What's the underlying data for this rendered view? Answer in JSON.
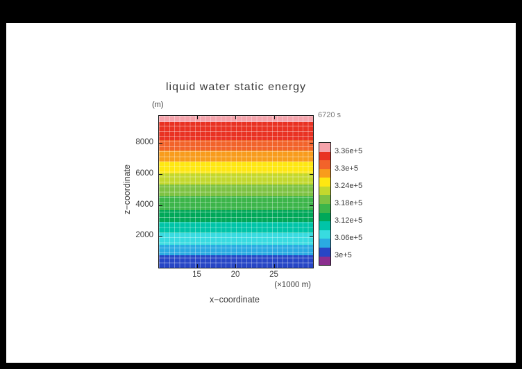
{
  "title": "liquid water static energy",
  "time_label": "6720 s",
  "axes": {
    "y_unit_label": "(m)",
    "y_axis_label": "z−coordinate",
    "x_axis_label": "x−coordinate",
    "x_unit_label": "(×1000 m)",
    "y_tick_labels": [
      "2000",
      "4000",
      "6000",
      "8000"
    ],
    "x_tick_labels": [
      "15",
      "20",
      "25"
    ]
  },
  "colorbar": {
    "labels_top_to_bottom": [
      "3.36e+5",
      "3.3e+5",
      "3.24e+5",
      "3.18e+5",
      "3.12e+5",
      "3.06e+5",
      "3e+5"
    ],
    "segments_top_to_bottom": [
      "#f5a3ab",
      "#e93223",
      "#f2632a",
      "#f89c1c",
      "#fee711",
      "#c3d82d",
      "#7dc242",
      "#3cb54a",
      "#00a859",
      "#00c4a7",
      "#38dbe0",
      "#2aabe2",
      "#2746c6",
      "#8b2f8f"
    ]
  },
  "chart_data": {
    "type": "heatmap",
    "title": "liquid water static energy",
    "time_annotation": "6720 s",
    "xlabel": "x−coordinate (×1000 m)",
    "ylabel": "z−coordinate (m)",
    "xlim": [
      10,
      30
    ],
    "ylim": [
      0,
      9800
    ],
    "x_ticks": [
      15,
      20,
      25
    ],
    "y_ticks": [
      2000,
      4000,
      6000,
      8000
    ],
    "value_units": "liquid water static energy",
    "value_range": [
      297000,
      339000
    ],
    "contour_interval": 3000,
    "colorbar_tick_values": [
      336000,
      330000,
      324000,
      318000,
      312000,
      306000,
      300000
    ],
    "field_description": "Horizontally stratified field; value increases nearly linearly with height z from ~3.03e5 at z=0 to ~3.39e5 at z=9800 m, producing horizontal color bands (red/pink aloft, blue near surface).",
    "grid": {
      "mesh_cols": 30,
      "mesh_rows": 30,
      "legend_position": "right"
    },
    "levels_colors": [
      {
        "range": [
          336000,
          339000
        ],
        "color": "#f5a3ab"
      },
      {
        "range": [
          333000,
          336000
        ],
        "color": "#e93223"
      },
      {
        "range": [
          330000,
          333000
        ],
        "color": "#f2632a"
      },
      {
        "range": [
          327000,
          330000
        ],
        "color": "#f89c1c"
      },
      {
        "range": [
          324000,
          327000
        ],
        "color": "#fee711"
      },
      {
        "range": [
          321000,
          324000
        ],
        "color": "#c3d82d"
      },
      {
        "range": [
          318000,
          321000
        ],
        "color": "#7dc242"
      },
      {
        "range": [
          315000,
          318000
        ],
        "color": "#3cb54a"
      },
      {
        "range": [
          312000,
          315000
        ],
        "color": "#00a859"
      },
      {
        "range": [
          309000,
          312000
        ],
        "color": "#00c4a7"
      },
      {
        "range": [
          306000,
          309000
        ],
        "color": "#38dbe0"
      },
      {
        "range": [
          303000,
          306000
        ],
        "color": "#2aabe2"
      },
      {
        "range": [
          300000,
          303000
        ],
        "color": "#2746c6"
      },
      {
        "range": [
          297000,
          300000
        ],
        "color": "#8b2f8f"
      }
    ],
    "plot_bands_top_to_bottom": [
      {
        "color": "#f5a3ab",
        "height_frac": 0.04,
        "value_range": [
          336000,
          339000
        ]
      },
      {
        "color": "#e93223",
        "height_frac": 0.12,
        "value_range": [
          333000,
          336000
        ]
      },
      {
        "color": "#f2632a",
        "height_frac": 0.07,
        "value_range": [
          330000,
          333000
        ]
      },
      {
        "color": "#f89c1c",
        "height_frac": 0.07,
        "value_range": [
          327000,
          330000
        ]
      },
      {
        "color": "#fee711",
        "height_frac": 0.08,
        "value_range": [
          324000,
          327000
        ]
      },
      {
        "color": "#c3d82d",
        "height_frac": 0.07,
        "value_range": [
          321000,
          324000
        ]
      },
      {
        "color": "#7dc242",
        "height_frac": 0.08,
        "value_range": [
          318000,
          321000
        ]
      },
      {
        "color": "#3cb54a",
        "height_frac": 0.09,
        "value_range": [
          315000,
          318000
        ]
      },
      {
        "color": "#00a859",
        "height_frac": 0.08,
        "value_range": [
          312000,
          315000
        ]
      },
      {
        "color": "#00c4a7",
        "height_frac": 0.07,
        "value_range": [
          309000,
          312000
        ]
      },
      {
        "color": "#38dbe0",
        "height_frac": 0.08,
        "value_range": [
          306000,
          309000
        ]
      },
      {
        "color": "#2aabe2",
        "height_frac": 0.07,
        "value_range": [
          303000,
          306000
        ]
      },
      {
        "color": "#2746c6",
        "height_frac": 0.08,
        "value_range": [
          300000,
          303000
        ]
      }
    ]
  }
}
